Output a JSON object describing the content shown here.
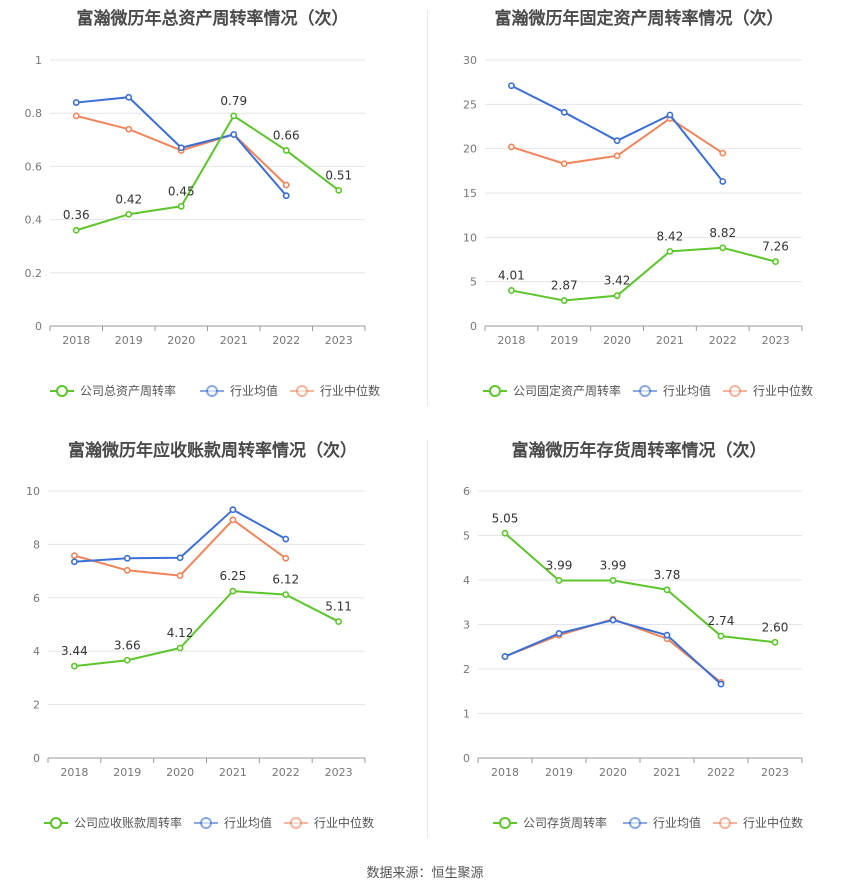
{
  "source_label": "数据来源：",
  "source_name": "恒生聚源",
  "colors": {
    "company": "#5cc52a",
    "avg": "#3b6fd6",
    "median": "#f0845b",
    "grid": "#e4e4ec",
    "axis": "#9a9a9a"
  },
  "chart_data": [
    {
      "type": "line",
      "title": "富瀚微历年总资产周转率情况（次）",
      "categories": [
        "2018",
        "2019",
        "2020",
        "2021",
        "2022",
        "2023"
      ],
      "ylim": [
        0,
        1
      ],
      "yticks": [
        "0",
        "0.2",
        "0.4",
        "0.6",
        "0.8",
        "1"
      ],
      "series": [
        {
          "name": "公司总资产周转率",
          "key": "company",
          "values": [
            0.36,
            0.42,
            0.45,
            0.79,
            0.66,
            0.51
          ],
          "labels": [
            "0.36",
            "0.42",
            "0.45",
            "0.79",
            "0.66",
            "0.51"
          ]
        },
        {
          "name": "行业均值",
          "key": "avg",
          "values": [
            0.84,
            0.86,
            0.67,
            0.72,
            0.49,
            null
          ]
        },
        {
          "name": "行业中位数",
          "key": "median",
          "values": [
            0.79,
            0.74,
            0.66,
            0.72,
            0.53,
            null
          ]
        }
      ]
    },
    {
      "type": "line",
      "title": "富瀚微历年固定资产周转率情况（次）",
      "categories": [
        "2018",
        "2019",
        "2020",
        "2021",
        "2022",
        "2023"
      ],
      "ylim": [
        0,
        30
      ],
      "yticks": [
        "0",
        "5",
        "10",
        "15",
        "20",
        "25",
        "30"
      ],
      "series": [
        {
          "name": "公司固定资产周转率",
          "key": "company",
          "values": [
            4.01,
            2.87,
            3.42,
            8.42,
            8.82,
            7.26
          ],
          "labels": [
            "4.01",
            "2.87",
            "3.42",
            "8.42",
            "8.82",
            "7.26"
          ]
        },
        {
          "name": "行业均值",
          "key": "avg",
          "values": [
            27.1,
            24.1,
            20.9,
            23.8,
            16.3,
            null
          ]
        },
        {
          "name": "行业中位数",
          "key": "median",
          "values": [
            20.2,
            18.3,
            19.2,
            23.4,
            19.5,
            null
          ]
        }
      ]
    },
    {
      "type": "line",
      "title": "富瀚微历年应收账款周转率情况（次）",
      "categories": [
        "2018",
        "2019",
        "2020",
        "2021",
        "2022",
        "2023"
      ],
      "ylim": [
        0,
        10
      ],
      "yticks": [
        "0",
        "2",
        "4",
        "6",
        "8",
        "10"
      ],
      "series": [
        {
          "name": "公司应收账款周转率",
          "key": "company",
          "values": [
            3.44,
            3.66,
            4.12,
            6.25,
            6.12,
            5.11
          ],
          "labels": [
            "3.44",
            "3.66",
            "4.12",
            "6.25",
            "6.12",
            "5.11"
          ]
        },
        {
          "name": "行业均值",
          "key": "avg",
          "values": [
            7.35,
            7.48,
            7.5,
            9.3,
            8.2,
            null
          ]
        },
        {
          "name": "行业中位数",
          "key": "median",
          "values": [
            7.58,
            7.03,
            6.83,
            8.92,
            7.48,
            null
          ]
        }
      ]
    },
    {
      "type": "line",
      "title": "富瀚微历年存货周转率情况（次）",
      "categories": [
        "2018",
        "2019",
        "2020",
        "2021",
        "2022",
        "2023"
      ],
      "ylim": [
        0,
        6
      ],
      "yticks": [
        "0",
        "1",
        "2",
        "3",
        "4",
        "5",
        "6"
      ],
      "series": [
        {
          "name": "公司存货周转率",
          "key": "company",
          "values": [
            5.05,
            3.99,
            3.99,
            3.78,
            2.74,
            2.6
          ],
          "labels": [
            "5.05",
            "3.99",
            "3.99",
            "3.78",
            "2.74",
            "2.60"
          ]
        },
        {
          "name": "行业均值",
          "key": "avg",
          "values": [
            2.28,
            2.8,
            3.1,
            2.76,
            1.66,
            null
          ]
        },
        {
          "name": "行业中位数",
          "key": "median",
          "values": [
            2.28,
            2.76,
            3.12,
            2.68,
            1.7,
            null
          ]
        }
      ]
    }
  ]
}
